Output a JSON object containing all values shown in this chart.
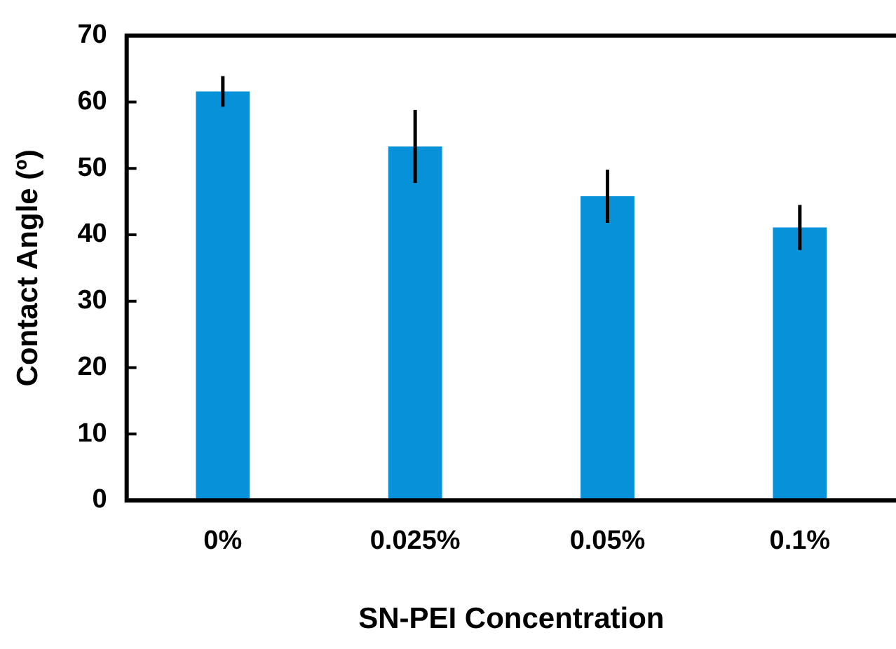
{
  "chart_data": {
    "type": "bar",
    "xlabel": "SN-PEI Concentration",
    "ylabel": "Contact Angle (º)",
    "categories": [
      "0%",
      "0.025%",
      "0.05%",
      "0.1%"
    ],
    "values": [
      61.6,
      53.3,
      45.8,
      41.1
    ],
    "errors": [
      2.3,
      5.5,
      4,
      3.4
    ],
    "color": "#0791d9",
    "ylim": [
      0,
      70
    ],
    "yticks": [
      0,
      10,
      20,
      30,
      40,
      50,
      60,
      70
    ],
    "grid": false,
    "legend": false
  }
}
